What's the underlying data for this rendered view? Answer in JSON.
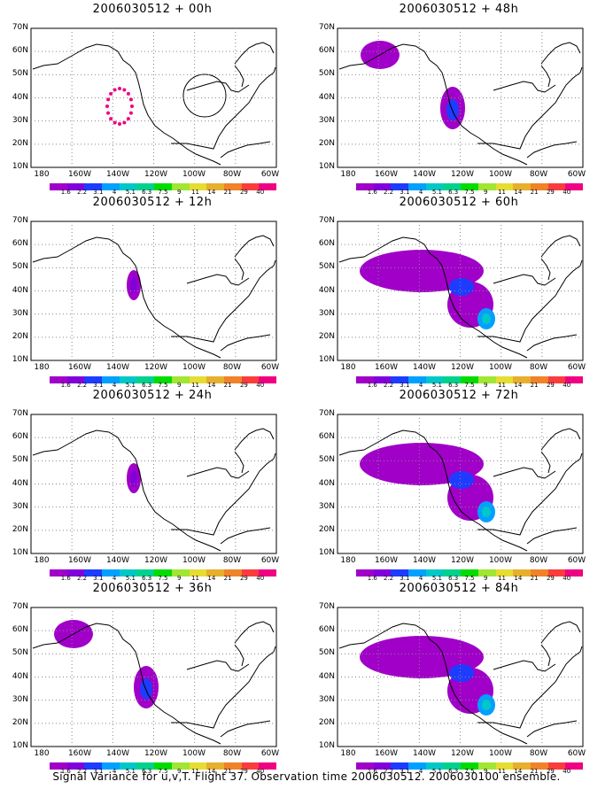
{
  "panels": [
    {
      "title": "2006030512 + 00h",
      "shape": "ring"
    },
    {
      "title": "2006030512 + 12h",
      "shape": "small"
    },
    {
      "title": "2006030512 + 24h",
      "shape": "small"
    },
    {
      "title": "2006030512 + 36h",
      "shape": "medium"
    },
    {
      "title": "2006030512 + 48h",
      "shape": "medium"
    },
    {
      "title": "2006030512 + 60h",
      "shape": "large"
    },
    {
      "title": "2006030512 + 72h",
      "shape": "large"
    },
    {
      "title": "2006030512 + 84h",
      "shape": "large"
    }
  ],
  "axes": {
    "lat_labels": [
      "70N",
      "60N",
      "50N",
      "40N",
      "30N",
      "20N",
      "10N"
    ],
    "lon_labels": [
      "180",
      "160W",
      "140W",
      "120W",
      "100W",
      "80W",
      "60W"
    ]
  },
  "colorbar": {
    "labels": [
      "1.6",
      "2.2",
      "3.1",
      "4",
      "5.1",
      "6.3",
      "7.5",
      "9",
      "11",
      "14",
      "21",
      "29",
      "40"
    ],
    "colors": [
      "#a000c8",
      "#8200dc",
      "#1e3cff",
      "#00a0ff",
      "#00c8c8",
      "#00d28c",
      "#00dc00",
      "#a0e632",
      "#e6dc32",
      "#e6af2d",
      "#f08228",
      "#fa3c3c",
      "#f00082"
    ]
  },
  "footer": "Signal Variance for u,v,T. Flight 37. Observation time 2006030512. 2006030100 ensemble."
}
